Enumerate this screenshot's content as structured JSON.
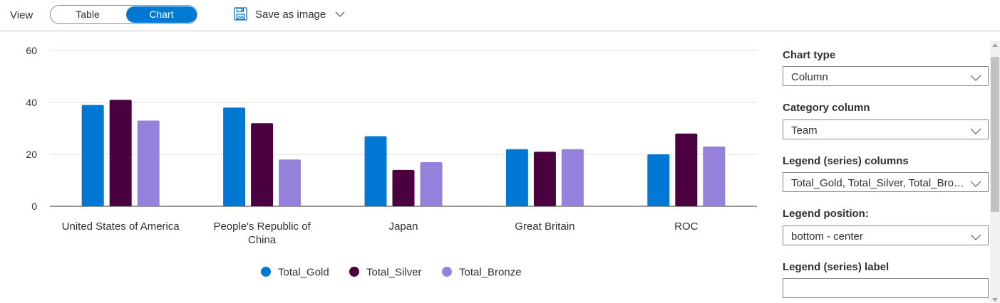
{
  "toolbar": {
    "view_label": "View",
    "toggle_options": [
      "Table",
      "Chart"
    ],
    "selected_view": "Chart",
    "save_label": "Save as image",
    "save_icon": "save-image-icon"
  },
  "panel": {
    "chart_type_label": "Chart type",
    "chart_type_value": "Column",
    "category_label": "Category column",
    "category_value": "Team",
    "series_label": "Legend (series) columns",
    "series_value": "Total_Gold, Total_Silver, Total_Bronze",
    "legend_position_label": "Legend position:",
    "legend_position_value": "bottom - center",
    "series_label_label": "Legend (series) label",
    "series_label_value": ""
  },
  "colors": {
    "accent": "#0078d4",
    "gold_series": "#0078d4",
    "silver_series": "#4b003f",
    "bronze_series": "#9580db"
  },
  "chart_data": {
    "type": "bar",
    "categories": [
      "United States of America",
      "People's Republic of China",
      "Japan",
      "Great Britain",
      "ROC"
    ],
    "series": [
      {
        "name": "Total_Gold",
        "color": "#0078d4",
        "values": [
          39,
          38,
          27,
          22,
          20
        ]
      },
      {
        "name": "Total_Silver",
        "color": "#4b003f",
        "values": [
          41,
          32,
          14,
          21,
          28
        ]
      },
      {
        "name": "Total_Bronze",
        "color": "#9580db",
        "values": [
          33,
          18,
          17,
          22,
          23
        ]
      }
    ],
    "ylim": [
      0,
      60
    ],
    "yticks": [
      0,
      20,
      40,
      60
    ],
    "grid": true,
    "legend_position": "bottom-center"
  }
}
